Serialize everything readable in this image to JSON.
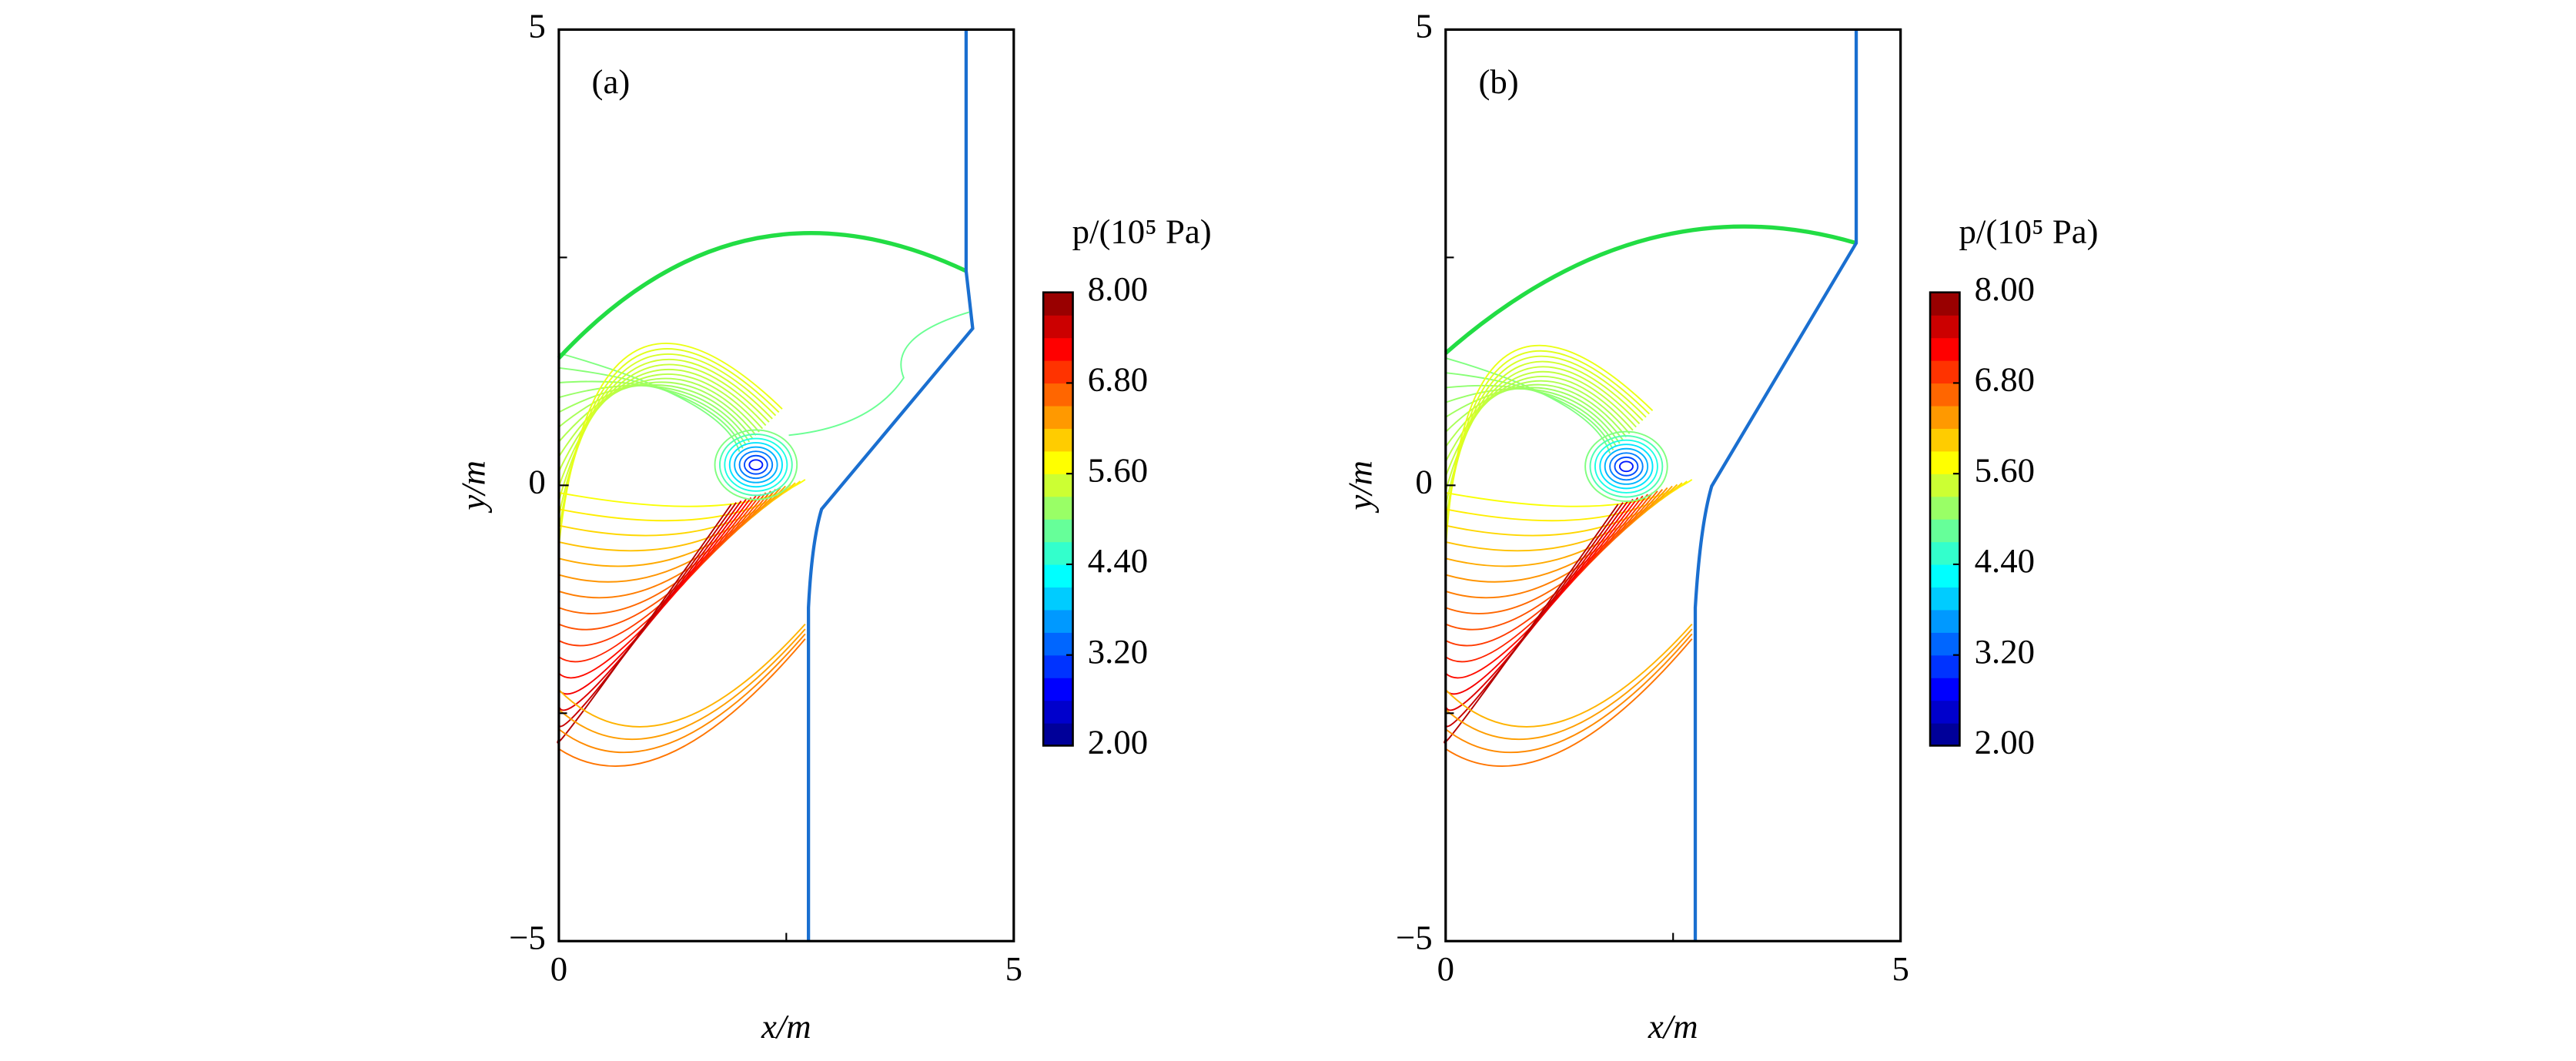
{
  "chart_data": [
    {
      "type": "contour",
      "panel_label": "(a)",
      "xlabel": "x/m",
      "ylabel": "y/m",
      "xlim": [
        0,
        5
      ],
      "ylim": [
        -5,
        5
      ],
      "xticks": [
        0,
        5
      ],
      "x_minor_ticks": [
        2.5
      ],
      "yticks": [
        {
          "value": -5,
          "label": "−5"
        },
        0,
        5
      ],
      "y_minor_ticks": [
        -2.5,
        2.5
      ],
      "colorbar": {
        "title": "p/(10⁵ Pa)",
        "clim": [
          2,
          8
        ],
        "levels": 20,
        "colormap": "jet",
        "ticks": [
          {
            "value": 2,
            "label": "2.00"
          },
          {
            "value": 3.2,
            "label": "3.20"
          },
          {
            "value": 4.4,
            "label": "4.40"
          },
          {
            "value": 5.6,
            "label": "5.60"
          },
          {
            "value": 6.8,
            "label": "6.80"
          },
          {
            "value": 8,
            "label": "8.00"
          }
        ]
      }
    },
    {
      "type": "contour",
      "panel_label": "(b)",
      "xlabel": "x/m",
      "ylabel": "y/m",
      "xlim": [
        0,
        5
      ],
      "ylim": [
        -5,
        5
      ],
      "xticks": [
        0,
        5
      ],
      "x_minor_ticks": [
        2.5
      ],
      "yticks": [
        {
          "value": -5,
          "label": "−5"
        },
        0,
        5
      ],
      "y_minor_ticks": [
        -2.5,
        2.5
      ],
      "colorbar": {
        "title": "p/(10⁵ Pa)",
        "clim": [
          2,
          8
        ],
        "levels": 20,
        "colormap": "jet",
        "ticks": [
          {
            "value": 2,
            "label": "2.00"
          },
          {
            "value": 3.2,
            "label": "3.20"
          },
          {
            "value": 4.4,
            "label": "4.40"
          },
          {
            "value": 5.6,
            "label": "5.60"
          },
          {
            "value": 6.8,
            "label": "6.80"
          },
          {
            "value": 8,
            "label": "8.00"
          }
        ]
      }
    }
  ]
}
